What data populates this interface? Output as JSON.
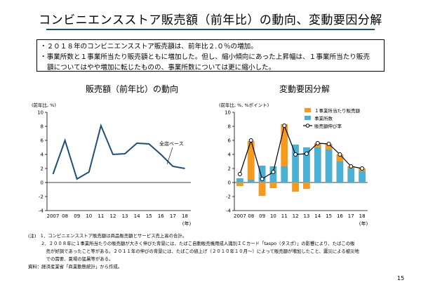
{
  "page": {
    "title": "コンビニエンスストア販売額（前年比）の動向、変動要因分解",
    "page_number": "15"
  },
  "summary": {
    "line1": "・２０１８年のコンビニエンスストア販売額は、前年比２.０％の増加。",
    "line2": "・事業所数と１事業所当たり販売額ともに増加した。但し、縮小傾向にあった上昇幅は、１事業所当たり販売",
    "line3": "額についてはやや増加に転じたものの、事業所数については更に縮小した。"
  },
  "notes": {
    "line1": "(注)　1．コンビニエンスストア販売額は商品販売額とサービス売上高の合計。",
    "line2": "　　　2．２００８年に１事業所当たりの販売額が大きく伸びた背景には、たばこ自動販売機用成人識別ＩＣカード「taspo（タスポ）」の影響により、たばこの販",
    "line3": "　　　　売が好調であったこと等がある。２０１１年の伸びの背景には、たばこの値上げ（２０１０年１０月～）によって販売額が増加したこと、震災による被災地",
    "line4": "　　　　での需要、夏場の猛暑等がある。",
    "line5": "資料：経済産業省「商業動態統計」から作成。"
  },
  "chart_data": [
    {
      "type": "line",
      "title": "販売額（前年比）の動向",
      "ylabel": "(前年比, %)",
      "xlabel": "(年)",
      "x_ticks": [
        "2007",
        "08",
        "09",
        "10",
        "11",
        "12",
        "13",
        "14",
        "15",
        "16",
        "17",
        "18"
      ],
      "ylim": [
        -4,
        10
      ],
      "y_ticks": [
        -4,
        -2,
        0,
        2,
        4,
        6,
        8,
        10
      ],
      "series": [
        {
          "name": "全店ベース",
          "color": "#1f4e79",
          "values": [
            1.2,
            6.0,
            0.5,
            1.5,
            8.1,
            4.0,
            4.1,
            5.6,
            5.5,
            4.0,
            2.3,
            2.0
          ]
        }
      ],
      "annotation": "全店ベース"
    },
    {
      "type": "bar",
      "title": "変動要因分解",
      "ylabel": "(前年比, %, %ポイント)",
      "xlabel": "(年)",
      "x_ticks": [
        "2007",
        "08",
        "09",
        "10",
        "11",
        "12",
        "13",
        "14",
        "15",
        "16",
        "17",
        "18"
      ],
      "ylim": [
        -4,
        10
      ],
      "y_ticks": [
        -4,
        -2,
        0,
        2,
        4,
        6,
        8,
        10
      ],
      "stacked": true,
      "series": [
        {
          "name": "１事業所当たり販売額",
          "color": "#f59a1e",
          "values": [
            -0.5,
            5.5,
            -1.9,
            -0.8,
            6.0,
            -1.3,
            -0.9,
            0.6,
            0.8,
            1.0,
            0.3,
            0.4
          ]
        },
        {
          "name": "事業所数",
          "color": "#4ab1d4",
          "values": [
            0.6,
            0.4,
            2.4,
            2.3,
            2.3,
            5.4,
            5.0,
            5.0,
            4.7,
            3.0,
            2.0,
            1.6
          ]
        },
        {
          "name": "販売額伸び率",
          "color": "#000000",
          "kind": "line",
          "values": [
            1.2,
            6.0,
            0.5,
            1.5,
            8.1,
            4.0,
            4.1,
            5.6,
            5.5,
            4.0,
            2.3,
            2.0
          ]
        }
      ]
    }
  ]
}
